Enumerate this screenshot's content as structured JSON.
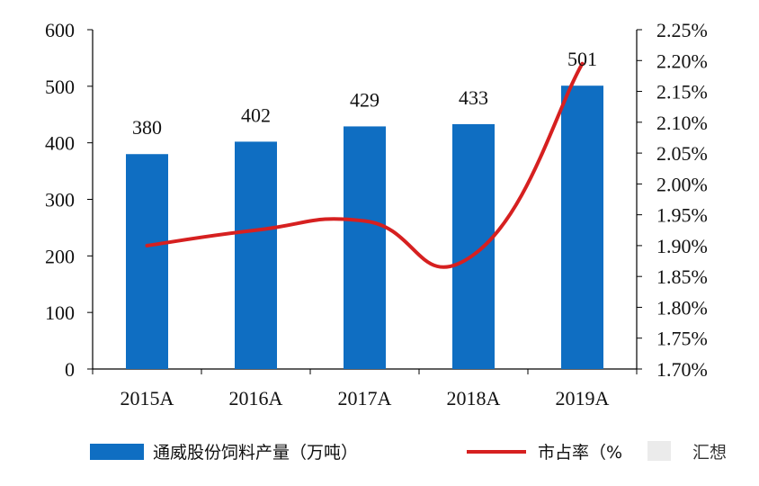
{
  "chart_data": {
    "type": "bar+line",
    "categories": [
      "2015A",
      "2016A",
      "2017A",
      "2018A",
      "2019A"
    ],
    "series": [
      {
        "name": "通威股份饲料产量（万吨）",
        "type": "bar",
        "axis": "left",
        "values": [
          380,
          402,
          429,
          433,
          501
        ],
        "labels": [
          "380",
          "402",
          "429",
          "433",
          "501"
        ],
        "color": "#0F6EC2"
      },
      {
        "name": "市占率（%）",
        "type": "line",
        "axis": "right",
        "values": [
          1.9,
          1.925,
          1.94,
          1.885,
          2.195
        ],
        "color": "#D62020"
      }
    ],
    "y_left": {
      "range": [
        0,
        600
      ],
      "ticks": [
        "0",
        "100",
        "200",
        "300",
        "400",
        "500",
        "600"
      ]
    },
    "y_right": {
      "range": [
        1.7,
        2.25
      ],
      "ticks": [
        "1.70%",
        "1.75%",
        "1.80%",
        "1.85%",
        "1.90%",
        "1.95%",
        "2.00%",
        "2.05%",
        "2.10%",
        "2.15%",
        "2.20%",
        "2.25%"
      ]
    },
    "legend": {
      "position": "bottom",
      "bar_label": "通威股份饲料产量（万吨）",
      "line_label": "市占率（%",
      "watermark_text": "汇想"
    }
  }
}
